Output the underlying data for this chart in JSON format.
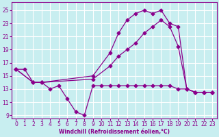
{
  "xlabel": "Windchill (Refroidissement éolien,°C)",
  "bg_color": "#c8eef0",
  "line_color": "#8b008b",
  "grid_color": "#ffffff",
  "xlim": [
    -0.5,
    23.5
  ],
  "ylim": [
    8.5,
    26.2
  ],
  "xticks": [
    0,
    1,
    2,
    3,
    4,
    5,
    6,
    7,
    8,
    9,
    10,
    11,
    12,
    13,
    14,
    15,
    16,
    17,
    18,
    19,
    20,
    21,
    22,
    23
  ],
  "yticks": [
    9,
    11,
    13,
    15,
    17,
    19,
    21,
    23,
    25
  ],
  "line1_x": [
    0,
    1,
    2,
    3,
    4,
    5,
    6,
    7,
    8,
    9,
    10,
    11,
    12,
    13,
    14,
    15,
    16,
    17,
    18,
    19,
    20,
    21,
    22,
    23
  ],
  "line1_y": [
    16.0,
    16.0,
    14.0,
    14.0,
    13.0,
    13.5,
    11.5,
    9.5,
    9.0,
    13.5,
    13.5,
    13.5,
    13.5,
    13.5,
    13.5,
    13.5,
    13.5,
    13.5,
    13.5,
    13.0,
    13.0,
    12.5,
    12.5,
    12.5
  ],
  "line2_x": [
    0,
    2,
    3,
    9,
    11,
    12,
    13,
    14,
    15,
    16,
    17,
    18,
    19,
    20,
    21,
    22,
    23
  ],
  "line2_y": [
    16.0,
    14.0,
    14.0,
    14.5,
    16.5,
    18.0,
    19.0,
    20.0,
    21.5,
    22.5,
    23.5,
    22.5,
    19.5,
    13.0,
    12.5,
    12.5,
    12.5
  ],
  "line3_x": [
    0,
    2,
    3,
    9,
    11,
    12,
    13,
    14,
    15,
    16,
    17,
    18,
    19,
    20,
    21,
    22,
    23
  ],
  "line3_y": [
    16.0,
    14.0,
    14.0,
    15.0,
    18.5,
    21.5,
    23.5,
    24.5,
    25.0,
    24.5,
    25.0,
    23.0,
    22.5,
    13.0,
    12.5,
    12.5,
    12.5
  ],
  "marker_size": 2.5,
  "line_width": 0.9,
  "tick_fontsize": 5.5,
  "xlabel_fontsize": 5.5
}
